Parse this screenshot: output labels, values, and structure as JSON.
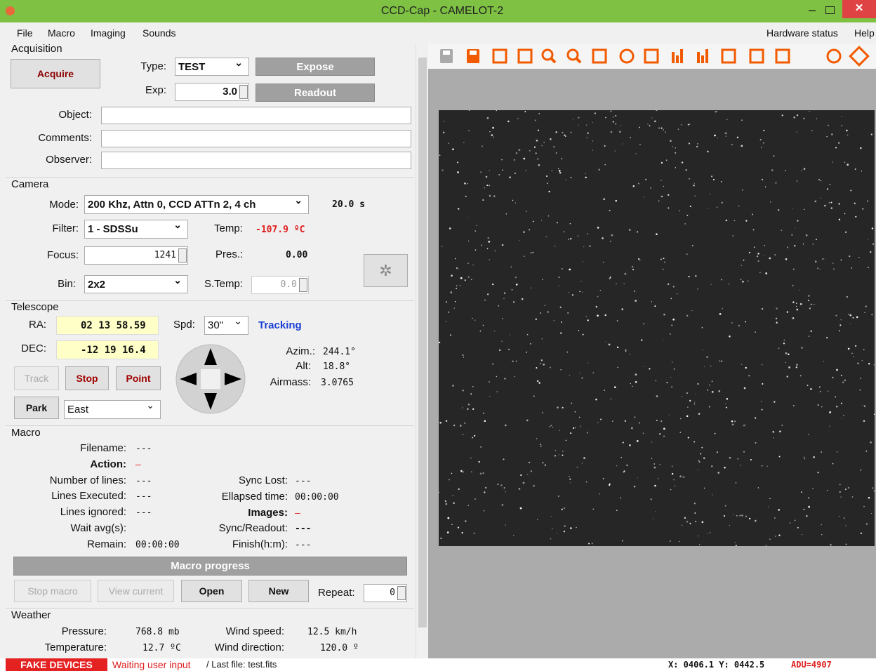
{
  "window": {
    "title": "CCD-Cap - CAMELOT-2"
  },
  "menu": {
    "left": [
      "File",
      "Macro",
      "Imaging",
      "Sounds"
    ],
    "right": [
      "Hardware status",
      "Help"
    ]
  },
  "acquisition": {
    "title": "Acquisition",
    "acquire": "Acquire",
    "type_label": "Type:",
    "type_value": "TEST",
    "expose": "Expose",
    "exp_label": "Exp:",
    "exp_value": "3.0",
    "readout": "Readout",
    "object_label": "Object:",
    "comments_label": "Comments:",
    "observer_label": "Observer:"
  },
  "camera": {
    "title": "Camera",
    "mode_label": "Mode:",
    "mode_value": "200 Khz, Attn 0, CCD ATTn 2, 4 ch",
    "mode_time": "20.0 s",
    "filter_label": "Filter:",
    "filter_value": "1 - SDSSu",
    "temp_label": "Temp:",
    "temp_value": "-107.9 ºC",
    "focus_label": "Focus:",
    "focus_value": "1241",
    "pres_label": "Pres.:",
    "pres_value": "0.00",
    "bin_label": "Bin:",
    "bin_value": "2x2",
    "stemp_label": "S.Temp:",
    "stemp_value": "0.0"
  },
  "telescope": {
    "title": "Telescope",
    "ra_label": "RA:",
    "ra": "02 13 58.59",
    "spd_label": "Spd:",
    "spd": "30\"",
    "tracking": "Tracking",
    "dec_label": "DEC:",
    "dec": "-12 19 16.4",
    "azim_label": "Azim.:",
    "azim": "244.1°",
    "alt_label": "Alt:",
    "alt": "18.8°",
    "airmass_label": "Airmass:",
    "airmass": "3.0765",
    "track": "Track",
    "stop": "Stop",
    "point": "Point",
    "park": "Park",
    "park_dir": "East"
  },
  "macro": {
    "title": "Macro",
    "left": [
      {
        "label": "Filename:",
        "value": "---"
      },
      {
        "label": "Action:",
        "value": "—"
      },
      {
        "label": "Number of lines:",
        "value": "---"
      },
      {
        "label": "Lines Executed:",
        "value": "---"
      },
      {
        "label": "Lines ignored:",
        "value": "---"
      },
      {
        "label": "Wait avg(s):"
      },
      {
        "label": "Remain:",
        "value": "00:00:00"
      }
    ],
    "right": [
      {
        "label": "Sync Lost:",
        "value": "---"
      },
      {
        "label": "Ellapsed time:",
        "value": "00:00:00"
      },
      {
        "label": "Images:",
        "value": "—"
      },
      {
        "label": "Sync/Readout:",
        "value": "---"
      },
      {
        "label": "Finish(h:m):",
        "value": "---"
      }
    ],
    "progress": "Macro progress",
    "stop_macro": "Stop macro",
    "view_current": "View current",
    "open": "Open",
    "new": "New",
    "repeat_label": "Repeat:",
    "repeat": "0"
  },
  "weather": {
    "title": "Weather",
    "pressure_label": "Pressure:",
    "pressure": "768.8 mb",
    "wind_speed_label": "Wind speed:",
    "wind_speed": "12.5 km/h",
    "temperature_label": "Temperature:",
    "temperature": "12.7 ºC",
    "wind_dir_label": "Wind direction:",
    "wind_dir": "120.0 º"
  },
  "status": {
    "devices": "FAKE DEVICES",
    "state": "Waiting user input",
    "last_file": "/ Last file: test.fits",
    "coords": "X: 0406.1 Y: 0442.5",
    "adu": "ADU=4907"
  }
}
